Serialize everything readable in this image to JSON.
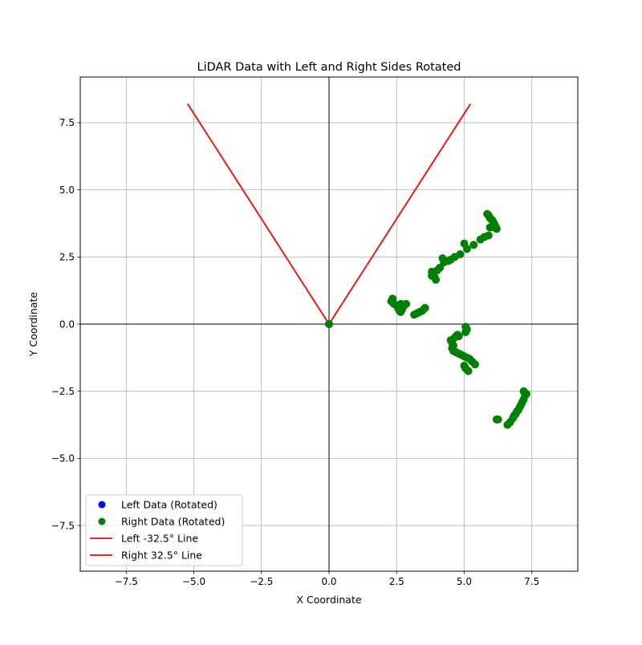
{
  "chart_data": {
    "type": "scatter",
    "title": "LiDAR Data with Left and Right Sides Rotated",
    "xlabel": "X Coordinate",
    "ylabel": "Y Coordinate",
    "xlim": [
      -9.2,
      9.2
    ],
    "ylim": [
      -9.2,
      9.2
    ],
    "xticks": [
      -7.5,
      -5.0,
      -2.5,
      0.0,
      2.5,
      5.0,
      7.5
    ],
    "yticks": [
      -7.5,
      -5.0,
      -2.5,
      0.0,
      2.5,
      5.0,
      7.5
    ],
    "xtick_labels": [
      "−7.5",
      "−5.0",
      "−2.5",
      "0.0",
      "2.5",
      "5.0",
      "7.5"
    ],
    "ytick_labels": [
      "−7.5",
      "−5.0",
      "−2.5",
      "0.0",
      "2.5",
      "5.0",
      "7.5"
    ],
    "grid": true,
    "axis_lines_at_origin": true,
    "legend_position": "lower-left",
    "series": [
      {
        "name": "Left Data (Rotated)",
        "kind": "scatter",
        "color": "#0000ff",
        "points": [
          [
            0.0,
            0.0
          ]
        ]
      },
      {
        "name": "Right Data (Rotated)",
        "kind": "scatter",
        "color": "#008000",
        "points": [
          [
            0.0,
            0.0
          ],
          [
            2.35,
            0.95
          ],
          [
            2.3,
            0.85
          ],
          [
            2.4,
            0.75
          ],
          [
            2.5,
            0.7
          ],
          [
            2.55,
            0.6
          ],
          [
            2.6,
            0.5
          ],
          [
            2.65,
            0.45
          ],
          [
            2.7,
            0.55
          ],
          [
            2.75,
            0.65
          ],
          [
            2.85,
            0.75
          ],
          [
            2.65,
            0.75
          ],
          [
            3.15,
            0.35
          ],
          [
            3.25,
            0.4
          ],
          [
            3.35,
            0.45
          ],
          [
            3.45,
            0.5
          ],
          [
            3.55,
            0.6
          ],
          [
            3.8,
            1.95
          ],
          [
            3.85,
            1.85
          ],
          [
            3.9,
            1.75
          ],
          [
            3.95,
            1.65
          ],
          [
            3.8,
            1.8
          ],
          [
            4.0,
            2.0
          ],
          [
            4.1,
            2.1
          ],
          [
            4.2,
            2.45
          ],
          [
            4.25,
            2.3
          ],
          [
            4.4,
            2.35
          ],
          [
            4.5,
            2.4
          ],
          [
            4.65,
            2.5
          ],
          [
            4.85,
            2.6
          ],
          [
            5.0,
            3.0
          ],
          [
            5.1,
            2.8
          ],
          [
            5.35,
            2.95
          ],
          [
            5.6,
            3.15
          ],
          [
            5.75,
            3.25
          ],
          [
            5.9,
            3.3
          ],
          [
            5.95,
            3.6
          ],
          [
            6.1,
            3.6
          ],
          [
            6.2,
            3.55
          ],
          [
            5.85,
            4.1
          ],
          [
            5.9,
            4.05
          ],
          [
            5.95,
            3.95
          ],
          [
            6.0,
            3.9
          ],
          [
            6.05,
            3.85
          ],
          [
            6.1,
            3.75
          ],
          [
            6.15,
            3.65
          ],
          [
            4.5,
            -0.6
          ],
          [
            4.55,
            -0.7
          ],
          [
            4.6,
            -0.8
          ],
          [
            4.65,
            -0.5
          ],
          [
            4.7,
            -0.45
          ],
          [
            4.75,
            -0.4
          ],
          [
            4.8,
            -0.45
          ],
          [
            4.55,
            -0.9
          ],
          [
            4.6,
            -1.0
          ],
          [
            4.7,
            -1.05
          ],
          [
            4.8,
            -1.1
          ],
          [
            4.9,
            -1.15
          ],
          [
            5.0,
            -1.2
          ],
          [
            5.1,
            -1.25
          ],
          [
            5.2,
            -1.3
          ],
          [
            5.3,
            -1.4
          ],
          [
            5.4,
            -1.5
          ],
          [
            5.05,
            -0.1
          ],
          [
            5.1,
            -0.2
          ],
          [
            5.05,
            -0.3
          ],
          [
            5.0,
            -1.55
          ],
          [
            5.05,
            -1.65
          ],
          [
            5.15,
            -1.75
          ],
          [
            6.2,
            -3.55
          ],
          [
            6.25,
            -3.55
          ],
          [
            6.6,
            -3.75
          ],
          [
            6.7,
            -3.65
          ],
          [
            6.8,
            -3.5
          ],
          [
            6.9,
            -3.35
          ],
          [
            7.0,
            -3.2
          ],
          [
            7.1,
            -3.0
          ],
          [
            7.2,
            -2.8
          ],
          [
            7.25,
            -2.65
          ],
          [
            7.3,
            -2.6
          ],
          [
            7.2,
            -2.5
          ],
          [
            7.15,
            -2.9
          ],
          [
            7.05,
            -3.1
          ],
          [
            6.95,
            -3.25
          ],
          [
            6.85,
            -3.4
          ]
        ]
      },
      {
        "name": "Left -32.5° Line",
        "kind": "line",
        "color": "#ff0000",
        "points": [
          [
            0.0,
            0.0
          ],
          [
            -5.23,
            8.2
          ]
        ]
      },
      {
        "name": "Right 32.5° Line",
        "kind": "line",
        "color": "#ff0000",
        "points": [
          [
            0.0,
            0.0
          ],
          [
            5.23,
            8.2
          ]
        ]
      }
    ]
  }
}
